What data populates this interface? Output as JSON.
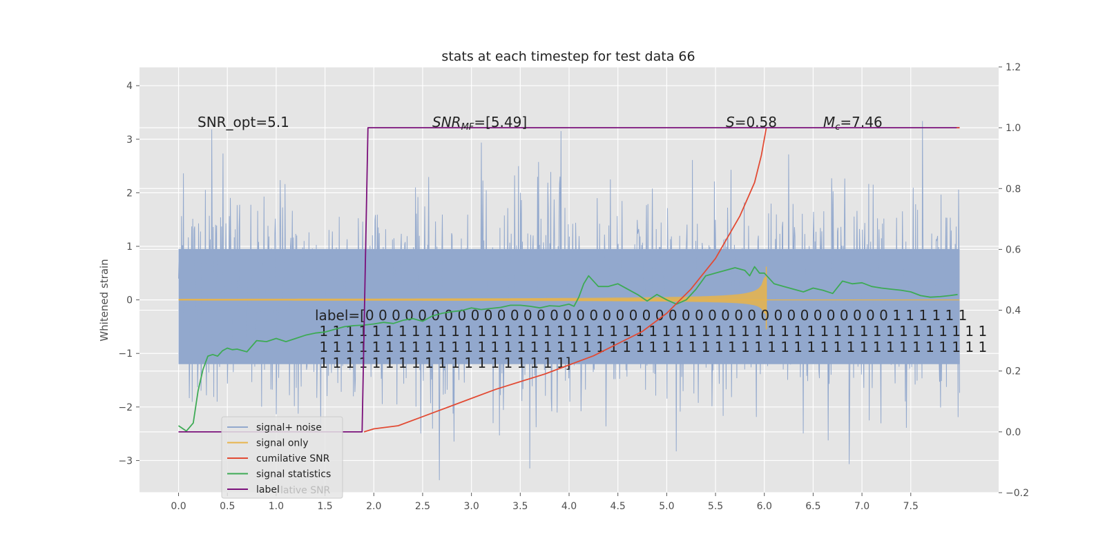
{
  "chart_data": {
    "type": "line",
    "title": "stats at each timestep for test data 66",
    "ylabel": "Whitened strain",
    "xlabel": "",
    "xlim": [
      -0.4,
      8.4
    ],
    "ylim": [
      -3.6,
      4.35
    ],
    "y2lim": [
      -0.2,
      1.2
    ],
    "x_ticks": [
      "0.0",
      "0.5",
      "1.0",
      "1.5",
      "2.0",
      "2.5",
      "3.0",
      "3.5",
      "4.0",
      "4.5",
      "5.0",
      "5.5",
      "6.0",
      "6.5",
      "7.0",
      "7.5"
    ],
    "y_ticks": [
      "−3",
      "−2",
      "−1",
      "0",
      "1",
      "2",
      "3",
      "4"
    ],
    "y2_ticks": [
      "−0.2",
      "0.0",
      "0.2",
      "0.4",
      "0.6",
      "0.8",
      "1.0",
      "1.2"
    ],
    "grid": true,
    "background": "#e5e5e5",
    "annotations": {
      "snr_opt": "SNR_opt=5.1",
      "snr_mf_sym": "SNR",
      "snr_mf_sub": "MF",
      "snr_mf_val": "=[5.49]",
      "s_sym": "S",
      "s_val": "=0.58",
      "mc_sym": "M",
      "mc_sub": "c",
      "mc_val": "=7.46"
    },
    "label_text_lines": [
      "label=[0 0 0 0 0 0 0 0 0 0 0 0 0 0 0 0 0 0 0 0 0 0 0 0 0 0 0 0 0 0 0 0 0 0 0 0 0 0 0 0 1 1 1 1 1 1",
      " 1 1 1 1 1 1 1 1 1 1 1 1 1 1 1 1 1 1 1 1 1 1 1 1 1 1 1 1 1 1 1 1 1 1 1 1 1 1 1 1 1 1 1 1 1 1 1 1 1 1 1",
      " 1 1 1 1 1 1 1 1 1 1 1 1 1 1 1 1 1 1 1 1 1 1 1 1 1 1 1 1 1 1 1 1 1 1 1 1 1 1 1 1 1 1 1 1 1 1 1 1 1 1 1",
      " 1 1 1 1 1 1 1 1 1 1 1 1 1 1 1 1 1 1 1]"
    ],
    "series": [
      {
        "name": "signal+ noise",
        "color": "#92a8cd",
        "axis": "left",
        "noise_band": [
          -1.2,
          0.95
        ],
        "t_range": [
          0.0,
          8.0
        ]
      },
      {
        "name": "signal only",
        "color": "#e8b44a",
        "axis": "left",
        "t_range": [
          0.0,
          6.02
        ],
        "peak_amplitude": 0.45,
        "merger_time": 6.02
      },
      {
        "name": "cumilative SNR",
        "color": "#e24a33",
        "axis": "right",
        "x": [
          1.9,
          2.0,
          2.25,
          2.5,
          2.75,
          3.0,
          3.25,
          3.5,
          3.75,
          4.0,
          4.25,
          4.5,
          4.75,
          5.0,
          5.25,
          5.5,
          5.75,
          5.9,
          5.97,
          6.02
        ],
        "y": [
          0.0,
          0.01,
          0.02,
          0.05,
          0.08,
          0.11,
          0.14,
          0.165,
          0.19,
          0.22,
          0.25,
          0.29,
          0.33,
          0.39,
          0.47,
          0.57,
          0.71,
          0.82,
          0.91,
          1.0
        ]
      },
      {
        "name": "signal statistics",
        "color": "#3daa54",
        "axis": "left",
        "x": [
          0.0,
          0.08,
          0.15,
          0.2,
          0.25,
          0.3,
          0.35,
          0.4,
          0.45,
          0.5,
          0.55,
          0.6,
          0.7,
          0.8,
          0.9,
          1.0,
          1.1,
          1.2,
          1.3,
          1.4,
          1.5,
          1.6,
          1.7,
          1.8,
          1.9,
          2.0,
          2.1,
          2.2,
          2.3,
          2.4,
          2.5,
          2.6,
          2.7,
          2.8,
          2.9,
          3.0,
          3.1,
          3.2,
          3.3,
          3.4,
          3.5,
          3.6,
          3.7,
          3.8,
          3.9,
          4.0,
          4.05,
          4.1,
          4.15,
          4.2,
          4.3,
          4.4,
          4.5,
          4.6,
          4.7,
          4.8,
          4.9,
          5.0,
          5.1,
          5.2,
          5.3,
          5.4,
          5.5,
          5.6,
          5.7,
          5.8,
          5.85,
          5.9,
          5.95,
          6.0,
          6.1,
          6.2,
          6.3,
          6.4,
          6.5,
          6.6,
          6.7,
          6.8,
          6.9,
          7.0,
          7.1,
          7.2,
          7.3,
          7.4,
          7.5,
          7.6,
          7.7,
          7.8,
          7.9,
          7.98
        ],
        "y": [
          -2.35,
          -2.45,
          -2.3,
          -1.7,
          -1.3,
          -1.05,
          -1.02,
          -1.05,
          -0.95,
          -0.9,
          -0.93,
          -0.92,
          -0.97,
          -0.76,
          -0.78,
          -0.72,
          -0.78,
          -0.72,
          -0.66,
          -0.62,
          -0.6,
          -0.55,
          -0.5,
          -0.48,
          -0.47,
          -0.45,
          -0.42,
          -0.44,
          -0.38,
          -0.35,
          -0.4,
          -0.3,
          -0.25,
          -0.22,
          -0.2,
          -0.15,
          -0.18,
          -0.16,
          -0.14,
          -0.1,
          -0.1,
          -0.12,
          -0.15,
          -0.11,
          -0.12,
          -0.08,
          -0.12,
          0.05,
          0.3,
          0.45,
          0.25,
          0.25,
          0.3,
          0.2,
          0.1,
          -0.02,
          0.1,
          0.0,
          -0.08,
          0.0,
          0.2,
          0.45,
          0.5,
          0.55,
          0.6,
          0.55,
          0.45,
          0.62,
          0.5,
          0.5,
          0.3,
          0.25,
          0.2,
          0.15,
          0.22,
          0.18,
          0.12,
          0.35,
          0.3,
          0.32,
          0.25,
          0.22,
          0.2,
          0.18,
          0.15,
          0.08,
          0.05,
          0.06,
          0.08,
          0.1
        ]
      },
      {
        "name": "label",
        "color": "#7a0f7a",
        "axis": "right",
        "x": [
          0.0,
          1.88,
          1.94,
          8.0
        ],
        "y": [
          0.0,
          0.0,
          1.0,
          1.0
        ]
      }
    ],
    "legend": {
      "placement": "lower-left",
      "entries": [
        "signal+ noise",
        "signal only",
        "cumilative SNR",
        "signal statistics",
        "label"
      ],
      "overlap_text": "lative SNR"
    }
  }
}
